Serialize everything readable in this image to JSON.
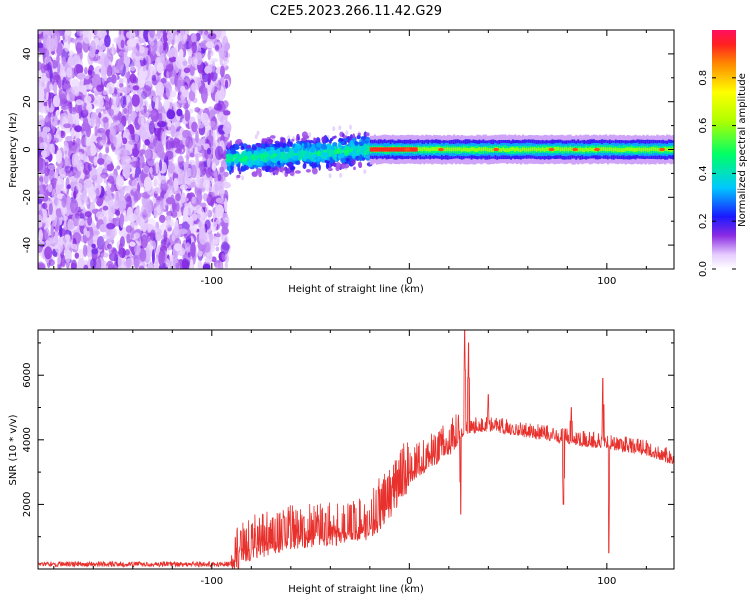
{
  "chart_data": [
    {
      "type": "heatmap",
      "title": "C2E5.2023.266.11.42.G29",
      "xlabel": "Height of straight line (km)",
      "ylabel": "Frequency (Hz)",
      "xlim": [
        -188,
        134
      ],
      "ylim": [
        -50,
        50
      ],
      "x_ticks": [
        -100,
        0,
        100
      ],
      "y_ticks": [
        -40,
        -20,
        0,
        20,
        40
      ],
      "colorbar": {
        "label": "Normalized spectral amplitude",
        "range": [
          0,
          1
        ],
        "ticks": [
          "0.0",
          "0.2",
          "0.4",
          "0.6",
          "0.8"
        ]
      },
      "regions": [
        {
          "x_range": [
            -188,
            -92
          ],
          "pattern": "diffuse noise across all frequencies",
          "amplitude": [
            0.0,
            0.15
          ]
        },
        {
          "x_range": [
            -92,
            -20
          ],
          "pattern": "noisy band near 0 Hz rising from about -4 Hz to 0 Hz",
          "amplitude": [
            0.1,
            0.45
          ]
        },
        {
          "x_range": [
            -20,
            134
          ],
          "pattern": "narrow strong band centered near 0 Hz",
          "amplitude": [
            0.35,
            1.0
          ]
        }
      ]
    },
    {
      "type": "line",
      "xlabel": "Height of straight line (km)",
      "ylabel": "SNR (10 * v/v)",
      "xlim": [
        -188,
        134
      ],
      "ylim": [
        0,
        7400
      ],
      "x_ticks": [
        -100,
        0,
        100
      ],
      "y_ticks": [
        2000,
        4000,
        6000
      ],
      "color": "#e8302c",
      "trend": {
        "x": [
          -188,
          -90,
          -84,
          -60,
          -40,
          -20,
          -8,
          0,
          10,
          20,
          28,
          40,
          60,
          80,
          100,
          120,
          134
        ],
        "y": [
          150,
          150,
          600,
          1000,
          1100,
          1300,
          2200,
          2950,
          3400,
          3800,
          4300,
          4400,
          4200,
          4000,
          3850,
          3650,
          3350
        ]
      },
      "spikes": [
        {
          "x": 26,
          "y": 1700
        },
        {
          "x": 28,
          "y": 7400
        },
        {
          "x": 30,
          "y": 7000
        },
        {
          "x": 40,
          "y": 5400
        },
        {
          "x": 78,
          "y": 2000
        },
        {
          "x": 82,
          "y": 5000
        },
        {
          "x": 98,
          "y": 5900
        },
        {
          "x": 101,
          "y": 500
        }
      ]
    }
  ]
}
